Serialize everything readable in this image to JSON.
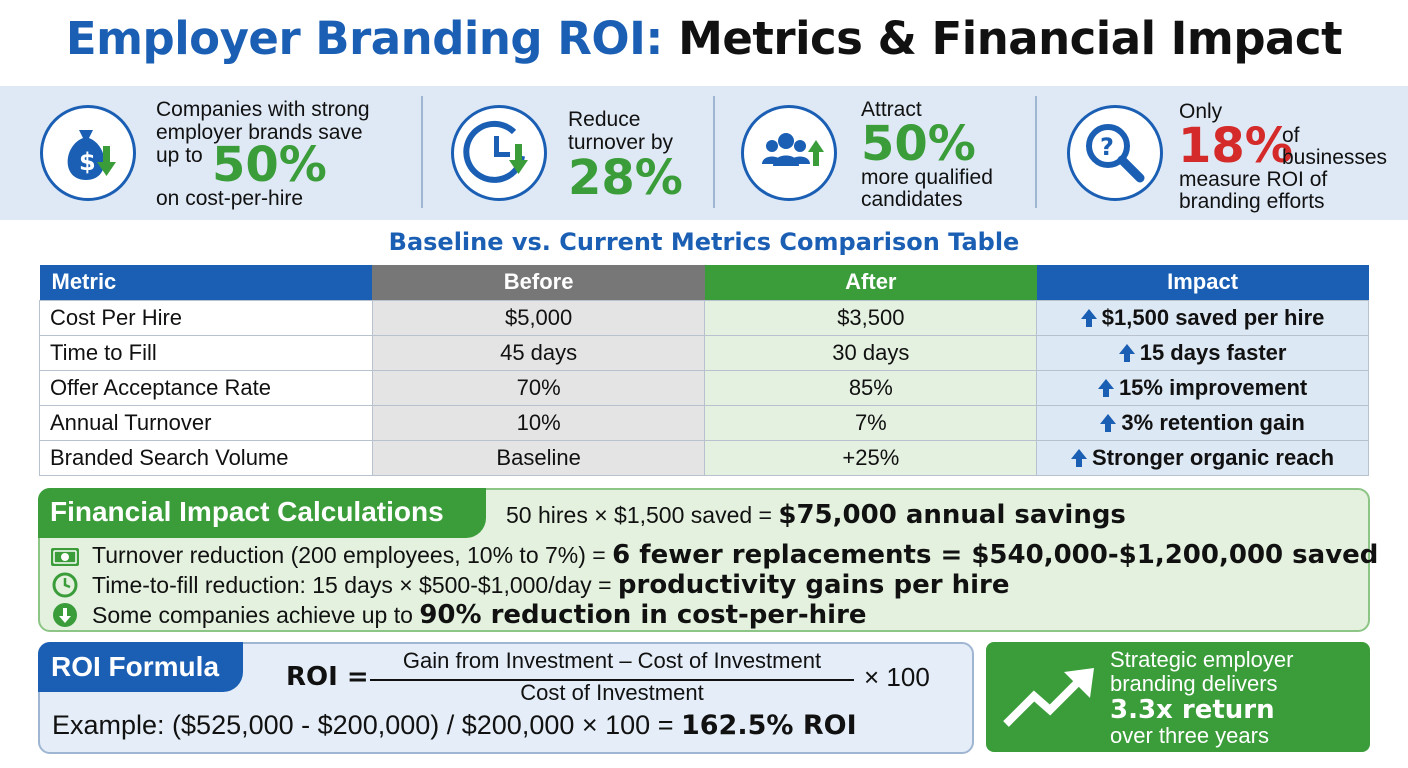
{
  "title": {
    "part1": "Employer Branding ROI:",
    "part2": "Metrics & Financial Impact"
  },
  "stats": [
    {
      "icon": "money-bag-down-icon",
      "line1": "Companies with strong",
      "line2": "employer brands save",
      "pre": "up to",
      "value": "50%",
      "post": "on cost-per-hire"
    },
    {
      "icon": "clock-down-icon",
      "line1": "Reduce",
      "line2": "turnover by",
      "value": "28%"
    },
    {
      "icon": "people-up-icon",
      "line1": "Attract",
      "value": "50%",
      "line2": "more qualified",
      "line3": "candidates"
    },
    {
      "icon": "magnifier-question-icon",
      "pre": "Only",
      "value": "18%",
      "side1": "of",
      "side2": "businesses",
      "line2": "measure ROI of",
      "line3": "branding efforts"
    }
  ],
  "table": {
    "title": "Baseline vs. Current Metrics Comparison Table",
    "headers": {
      "metric": "Metric",
      "before": "Before",
      "after": "After",
      "impact": "Impact"
    },
    "rows": [
      {
        "metric": "Cost Per Hire",
        "before": "$5,000",
        "after": "$3,500",
        "impact": "$1,500 saved per hire"
      },
      {
        "metric": "Time to Fill",
        "before": "45 days",
        "after": "30 days",
        "impact": "15 days faster"
      },
      {
        "metric": "Offer Acceptance Rate",
        "before": "70%",
        "after": "85%",
        "impact": "15% improvement"
      },
      {
        "metric": "Annual Turnover",
        "before": "10%",
        "after": "7%",
        "impact": "3% retention gain"
      },
      {
        "metric": "Branded Search Volume",
        "before": "Baseline",
        "after": "+25%",
        "impact": "Stronger organic reach"
      }
    ]
  },
  "financial": {
    "title": "Financial Impact Calculations",
    "line1": {
      "text": "50 hires × $1,500 saved =",
      "bold": "$75,000 annual savings"
    },
    "line2": {
      "text": "Turnover reduction (200 employees, 10% to 7%) =",
      "bold": "6 fewer replacements = $540,000-$1,200,000 saved"
    },
    "line3": {
      "text": "Time-to-fill reduction: 15 days × $500-$1,000/day =",
      "bold": "productivity gains per hire"
    },
    "line4": {
      "text": "Some companies achieve up to",
      "bold": "90% reduction in cost-per-hire"
    }
  },
  "roi": {
    "title": "ROI Formula",
    "lhs": "ROI =",
    "numerator": "Gain from Investment – Cost of Investment",
    "denominator": "Cost of Investment",
    "times": "× 100",
    "example": "Example: ($525,000 - $200,000) / $200,000 × 100 =",
    "example_bold": "162.5% ROI"
  },
  "strategic": {
    "line1": "Strategic employer",
    "line2": "branding delivers",
    "big": "3.3x return",
    "line3": "over three years"
  },
  "colors": {
    "blue": "#1a5fb4",
    "green": "#3a9d3a",
    "red": "#d42a2a",
    "gray": "#777777"
  }
}
